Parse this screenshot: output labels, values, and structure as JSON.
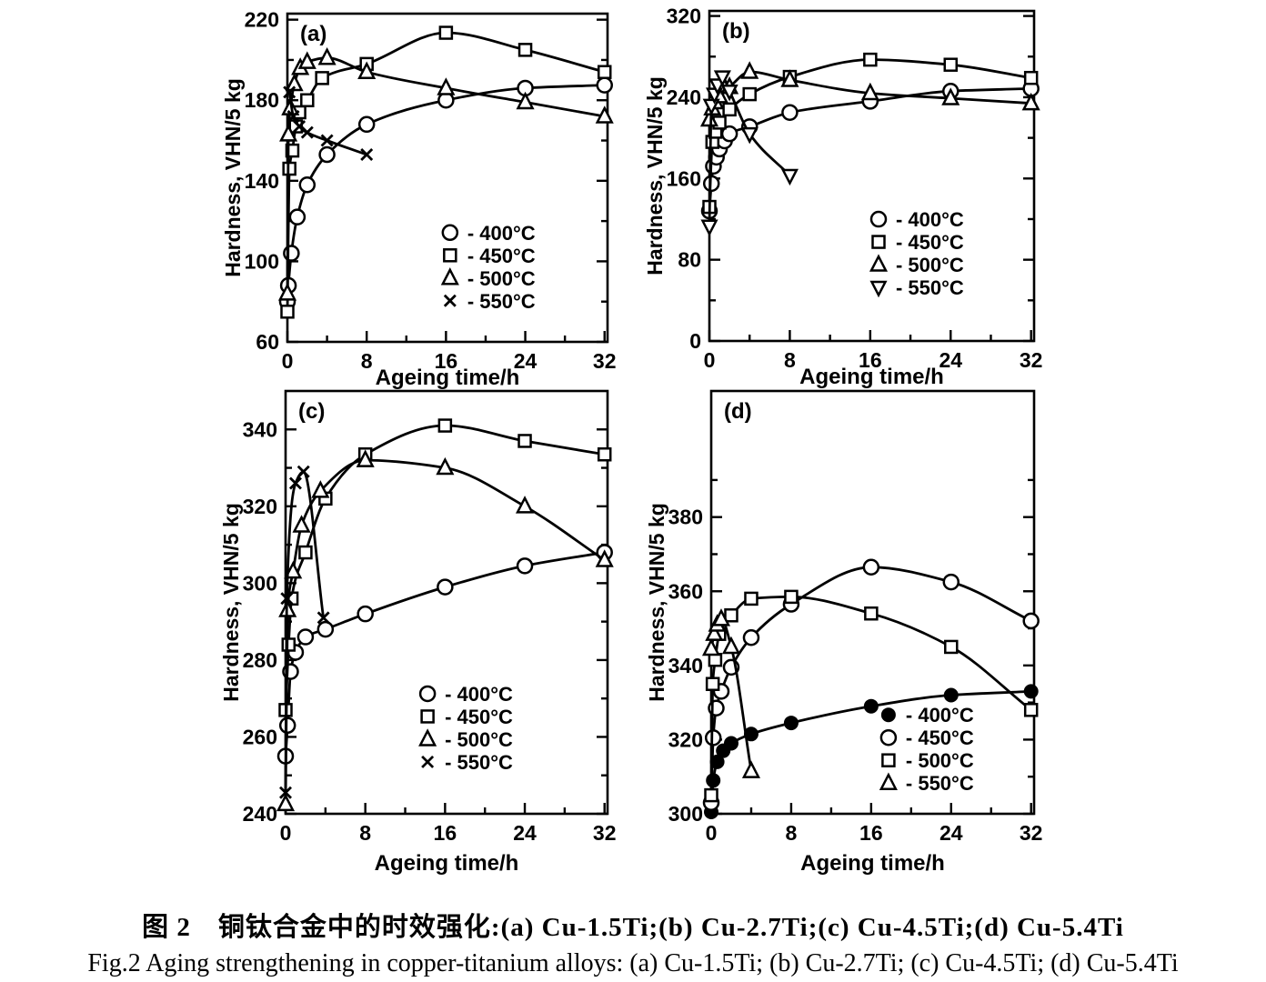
{
  "figure": {
    "background": "#ffffff",
    "ink_color": "#000000",
    "caption_line1": "图 2　铜钛合金中的时效强化:(a) Cu-1.5Ti;(b) Cu-2.7Ti;(c) Cu-4.5Ti;(d) Cu-5.4Ti",
    "caption_line2": "Fig.2 Aging strengthening in copper-titanium alloys: (a) Cu-1.5Ti; (b) Cu-2.7Ti; (c) Cu-4.5Ti; (d) Cu-5.4Ti"
  },
  "chart_data": [
    {
      "id": "a",
      "panel_label": "(a)",
      "type": "line",
      "xlabel": "Ageing time/h",
      "ylabel": "Hardness, VHN/5 kg",
      "xlim": [
        0,
        32.3
      ],
      "ylim": [
        60,
        223
      ],
      "xticks": {
        "major": [
          0,
          8,
          16,
          24,
          32
        ],
        "minor": [
          4,
          12,
          20,
          28
        ]
      },
      "yticks": {
        "major": [
          60,
          100,
          140,
          180,
          220
        ],
        "minor": [
          80,
          120,
          160,
          200
        ]
      },
      "grid": false,
      "legend": {
        "fx": 0.508,
        "fy": 0.667,
        "items": [
          {
            "marker": "circle",
            "label": "- 400°C"
          },
          {
            "marker": "square",
            "label": "- 450°C"
          },
          {
            "marker": "triangle",
            "label": "- 500°C"
          },
          {
            "marker": "x",
            "label": "- 550°C"
          }
        ]
      },
      "series": [
        {
          "name": "400°C",
          "marker": "circle",
          "points": [
            [
              0,
              80
            ],
            [
              0.1,
              88
            ],
            [
              0.4,
              104
            ],
            [
              1,
              122
            ],
            [
              2,
              138
            ],
            [
              4,
              153
            ],
            [
              8,
              168
            ],
            [
              16,
              180
            ],
            [
              24,
              186
            ],
            [
              32,
              187.5
            ]
          ]
        },
        {
          "name": "450°C",
          "marker": "square",
          "points": [
            [
              0,
              75
            ],
            [
              0.2,
              146
            ],
            [
              0.5,
              155
            ],
            [
              0.85,
              167
            ],
            [
              1.2,
              174
            ],
            [
              2,
              180
            ],
            [
              3.5,
              191
            ],
            [
              8,
              198
            ],
            [
              16,
              213.5
            ],
            [
              24,
              205
            ],
            [
              32,
              194
            ]
          ]
        },
        {
          "name": "500°C",
          "marker": "triangle",
          "points": [
            [
              0,
              84
            ],
            [
              0.1,
              163
            ],
            [
              0.3,
              176
            ],
            [
              0.7,
              188
            ],
            [
              1.3,
              196
            ],
            [
              2,
              199
            ],
            [
              4,
              201
            ],
            [
              8,
              194
            ],
            [
              16,
              186
            ],
            [
              24,
              179
            ],
            [
              32,
              172
            ]
          ]
        },
        {
          "name": "550°C",
          "marker": "x",
          "points": [
            [
              0.2,
              184
            ],
            [
              0.6,
              172
            ],
            [
              1.2,
              167
            ],
            [
              2,
              164
            ],
            [
              4,
              160
            ],
            [
              8,
              153
            ]
          ]
        }
      ]
    },
    {
      "id": "b",
      "panel_label": "(b)",
      "type": "line",
      "xlabel": "Ageing time/h",
      "ylabel": "Hardness, VHN/5 kg",
      "xlim": [
        0,
        32.3
      ],
      "ylim": [
        0,
        325
      ],
      "xticks": {
        "major": [
          0,
          8,
          16,
          24,
          32
        ],
        "minor": [
          4,
          12,
          20,
          28
        ]
      },
      "yticks": {
        "major": [
          0,
          80,
          160,
          240,
          320
        ],
        "minor": [
          40,
          120,
          200,
          280
        ]
      },
      "grid": false,
      "legend": {
        "fx": 0.521,
        "fy": 0.631,
        "items": [
          {
            "marker": "circle",
            "label": "- 400°C"
          },
          {
            "marker": "square",
            "label": "- 450°C"
          },
          {
            "marker": "triangle",
            "label": "- 500°C"
          },
          {
            "marker": "triangle-down",
            "label": "- 550°C"
          }
        ]
      },
      "series": [
        {
          "name": "400°C",
          "marker": "circle",
          "points": [
            [
              0,
              128
            ],
            [
              0.2,
              155
            ],
            [
              0.4,
              172
            ],
            [
              0.7,
              181
            ],
            [
              1,
              189
            ],
            [
              1.5,
              197
            ],
            [
              2,
              204
            ],
            [
              4,
              211
            ],
            [
              8,
              225
            ],
            [
              16,
              236
            ],
            [
              24,
              246
            ],
            [
              32,
              248.5
            ]
          ]
        },
        {
          "name": "450°C",
          "marker": "square",
          "points": [
            [
              0,
              132
            ],
            [
              0.3,
              196
            ],
            [
              0.6,
              206
            ],
            [
              1,
              215
            ],
            [
              2,
              228
            ],
            [
              4,
              243
            ],
            [
              8,
              260
            ],
            [
              16,
              277
            ],
            [
              24,
              272
            ],
            [
              32,
              259
            ]
          ]
        },
        {
          "name": "500°C",
          "marker": "triangle",
          "points": [
            [
              0,
              218
            ],
            [
              0.3,
              229
            ],
            [
              0.6,
              235
            ],
            [
              1,
              241
            ],
            [
              2,
              250
            ],
            [
              4,
              265
            ],
            [
              8,
              257
            ],
            [
              16,
              244
            ],
            [
              24,
              239
            ],
            [
              32,
              234
            ]
          ]
        },
        {
          "name": "550°C",
          "marker": "triangle-down",
          "points": [
            [
              0,
              113
            ],
            [
              0.2,
              232
            ],
            [
              0.5,
              243
            ],
            [
              0.8,
              252
            ],
            [
              1.3,
              260
            ],
            [
              2,
              246
            ],
            [
              4,
              204
            ],
            [
              8,
              163
            ]
          ]
        }
      ]
    },
    {
      "id": "c",
      "panel_label": "(c)",
      "type": "line",
      "xlabel": "Ageing time/h",
      "ylabel": "Hardness, VHN/5 kg",
      "xlim": [
        0,
        32.3
      ],
      "ylim": [
        240,
        350
      ],
      "xticks": {
        "major": [
          0,
          8,
          16,
          24,
          32
        ],
        "minor": [
          4,
          12,
          20,
          28
        ]
      },
      "yticks": {
        "major": [
          240,
          260,
          280,
          300,
          320,
          340
        ],
        "minor": [
          250,
          270,
          290,
          310,
          330
        ]
      },
      "grid": false,
      "legend": {
        "fx": 0.441,
        "fy": 0.716,
        "items": [
          {
            "marker": "circle",
            "label": "- 400°C"
          },
          {
            "marker": "square",
            "label": "- 450°C"
          },
          {
            "marker": "triangle",
            "label": "- 500°C"
          },
          {
            "marker": "x",
            "label": "- 550°C"
          }
        ]
      },
      "series": [
        {
          "name": "400°C",
          "marker": "circle",
          "points": [
            [
              0,
              255
            ],
            [
              0.2,
              263
            ],
            [
              0.5,
              277
            ],
            [
              1,
              282
            ],
            [
              2,
              286
            ],
            [
              4,
              288
            ],
            [
              8,
              292
            ],
            [
              16,
              299
            ],
            [
              24,
              304.5
            ],
            [
              32,
              308
            ]
          ]
        },
        {
          "name": "450°C",
          "marker": "square",
          "points": [
            [
              0,
              267
            ],
            [
              0.3,
              284
            ],
            [
              0.6,
              296
            ],
            [
              2,
              308
            ],
            [
              4,
              322
            ],
            [
              8,
              333.5
            ],
            [
              16,
              341
            ],
            [
              24,
              337
            ],
            [
              32,
              333.5
            ]
          ]
        },
        {
          "name": "500°C",
          "marker": "triangle",
          "points": [
            [
              0,
              242.5
            ],
            [
              0.2,
              293
            ],
            [
              0.75,
              303
            ],
            [
              1.6,
              315
            ],
            [
              3.5,
              324
            ],
            [
              8,
              332
            ],
            [
              16,
              330
            ],
            [
              24,
              320
            ],
            [
              32,
              306
            ]
          ]
        },
        {
          "name": "550°C",
          "marker": "x",
          "points": [
            [
              0,
              245.5
            ],
            [
              0.12,
              296
            ],
            [
              1,
              326
            ],
            [
              1.8,
              329
            ],
            [
              3.8,
              291
            ]
          ]
        }
      ]
    },
    {
      "id": "d",
      "panel_label": "(d)",
      "type": "line",
      "xlabel": "Ageing time/h",
      "ylabel": "Hardness, VHN/5 kg",
      "xlim": [
        0,
        32.3
      ],
      "ylim": [
        300,
        414
      ],
      "xticks": {
        "major": [
          0,
          8,
          16,
          24,
          32
        ],
        "minor": [
          4,
          12,
          20,
          28
        ]
      },
      "yticks": {
        "major": [
          300,
          320,
          340,
          360,
          380
        ],
        "minor": [
          310,
          330,
          350,
          370,
          390
        ]
      },
      "grid": false,
      "legend": {
        "fx": 0.549,
        "fy": 0.766,
        "items": [
          {
            "marker": "circle-filled",
            "label": "- 400°C"
          },
          {
            "marker": "circle",
            "label": "- 450°C"
          },
          {
            "marker": "square",
            "label": "- 500°C"
          },
          {
            "marker": "triangle",
            "label": "- 550°C"
          }
        ]
      },
      "series": [
        {
          "name": "400°C",
          "marker": "circle-filled",
          "points": [
            [
              0,
              300.5
            ],
            [
              0.2,
              309
            ],
            [
              0.6,
              314
            ],
            [
              1.2,
              317
            ],
            [
              2,
              319
            ],
            [
              4,
              321.5
            ],
            [
              8,
              324.5
            ],
            [
              16,
              329
            ],
            [
              24,
              332
            ],
            [
              32,
              333
            ]
          ]
        },
        {
          "name": "450°C",
          "marker": "circle",
          "points": [
            [
              0,
              303
            ],
            [
              0.2,
              320.5
            ],
            [
              0.5,
              328.5
            ],
            [
              1,
              333
            ],
            [
              2,
              339.5
            ],
            [
              4,
              347.5
            ],
            [
              8,
              356.5
            ],
            [
              16,
              366.5
            ],
            [
              24,
              362.5
            ],
            [
              32,
              352
            ]
          ]
        },
        {
          "name": "500°C",
          "marker": "square",
          "points": [
            [
              0,
              305
            ],
            [
              0.15,
              335
            ],
            [
              0.4,
              341.5
            ],
            [
              0.8,
              348.5
            ],
            [
              2,
              353.5
            ],
            [
              4,
              358
            ],
            [
              8,
              358.5
            ],
            [
              16,
              354
            ],
            [
              24,
              345
            ],
            [
              32,
              328
            ]
          ]
        },
        {
          "name": "550°C",
          "marker": "triangle",
          "points": [
            [
              0,
              344.5
            ],
            [
              0.3,
              348.5
            ],
            [
              0.6,
              351
            ],
            [
              1,
              352.5
            ],
            [
              2,
              345
            ],
            [
              4,
              311.5
            ]
          ]
        }
      ]
    }
  ]
}
